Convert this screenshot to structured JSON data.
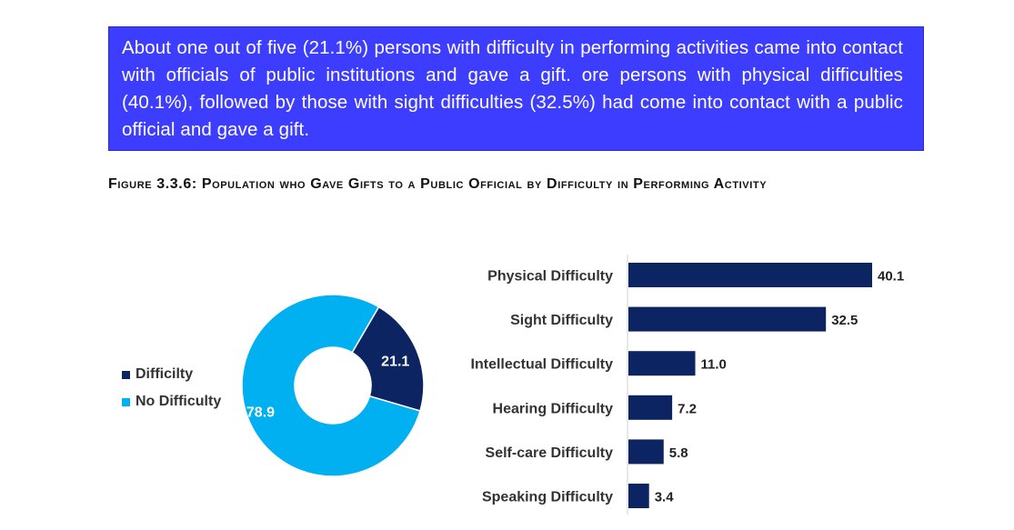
{
  "summary": {
    "text": "About one out of five (21.1%) persons with difficulty in performing activities came into contact with officials of public institutions and gave a gift. ore persons with physical difficulties (40.1%), followed by those with sight difficulties (32.5%) had come into contact with a public official and gave a gift."
  },
  "figure": {
    "title": "Figure 3.3.6: Population who Gave Gifts to a Public Official by Difficulty in Performing Activity"
  },
  "colors": {
    "navy": "#0c2461",
    "cyan": "#00b0f0",
    "box": "#3d3dff"
  },
  "chart_data": [
    {
      "type": "pie",
      "variant": "donut",
      "legend_position": "left",
      "slices": [
        {
          "label": "Difficilty",
          "value": 21.1,
          "color": "#0c2461"
        },
        {
          "label": "No Difficulty",
          "value": 78.9,
          "color": "#00b0f0"
        }
      ]
    },
    {
      "type": "bar",
      "orientation": "horizontal",
      "categories": [
        "Physical Difficulty",
        "Sight Difficulty",
        "Intellectual Difficulty",
        "Hearing Difficulty",
        "Self-care Difficulty",
        "Speaking Difficulty"
      ],
      "values": [
        40.1,
        32.5,
        11.0,
        7.2,
        5.8,
        3.4
      ],
      "labels": [
        "40.1",
        "32.5",
        "11.0",
        "7.2",
        "5.8",
        "3.4"
      ],
      "grid": false,
      "color": "#0c2461"
    }
  ]
}
